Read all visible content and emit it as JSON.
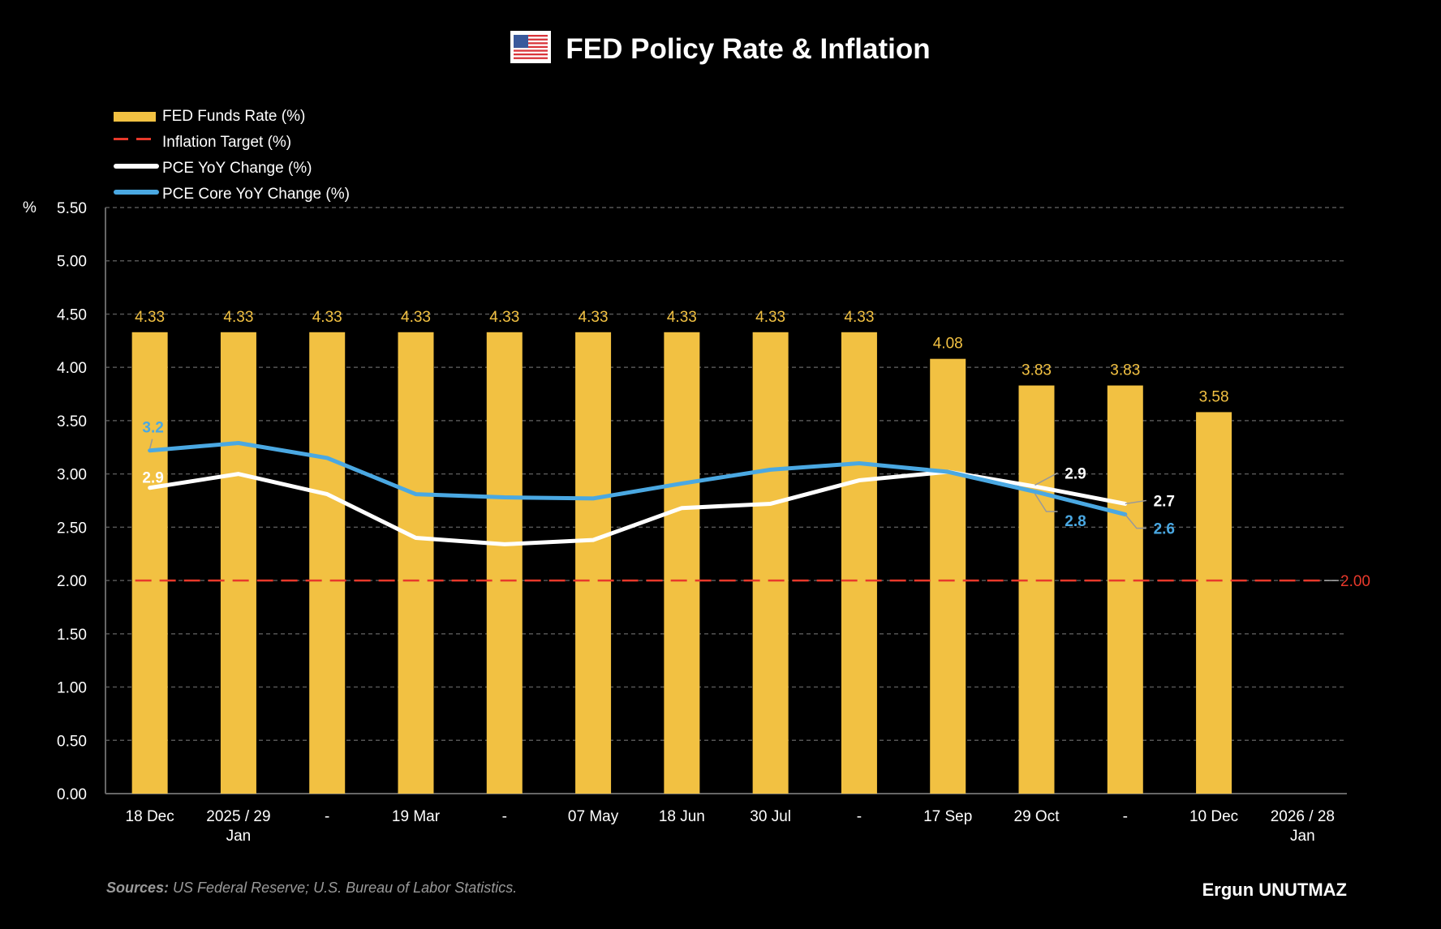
{
  "title": "FED Policy Rate & Inflation",
  "title_icon": "us-flag-icon",
  "y_unit_label": "%",
  "legend": [
    {
      "label": "FED Funds Rate (%)",
      "kind": "bar"
    },
    {
      "label": "Inflation Target (%)",
      "kind": "target"
    },
    {
      "label": "PCE YoY Change (%)",
      "kind": "pce"
    },
    {
      "label": "PCE Core YoY Change (%)",
      "kind": "core"
    }
  ],
  "colors": {
    "bar": "#f2c142",
    "bar_label": "#f2c142",
    "target": "#e8392b",
    "pce": "#ffffff",
    "core": "#4aa8e2",
    "grid": "#555555",
    "axis": "#666666"
  },
  "footer": {
    "sources_label": "Sources:",
    "sources_text": " US Federal Reserve; U.S. Bureau of Labor Statistics.",
    "author": "Ergun UNUTMAZ"
  },
  "chart_data": {
    "type": "bar",
    "title": "FED Policy Rate & Inflation",
    "xlabel": "",
    "ylabel": "%",
    "ylim": [
      0,
      5.5
    ],
    "yticks": [
      "0.00",
      "0.50",
      "1.00",
      "1.50",
      "2.00",
      "2.50",
      "3.00",
      "3.50",
      "4.00",
      "4.50",
      "5.00",
      "5.50"
    ],
    "grid": true,
    "legend_position": "top-left",
    "categories": [
      [
        "18 Dec"
      ],
      [
        "2025 / 29",
        "Jan"
      ],
      [
        "-"
      ],
      [
        "19 Mar"
      ],
      [
        "-"
      ],
      [
        "07 May"
      ],
      [
        "18 Jun"
      ],
      [
        "30 Jul"
      ],
      [
        "-"
      ],
      [
        "17 Sep"
      ],
      [
        "29 Oct"
      ],
      [
        "-"
      ],
      [
        "10 Dec"
      ],
      [
        "2026 / 28",
        "Jan"
      ]
    ],
    "series": [
      {
        "name": "FED Funds Rate (%)",
        "type": "bar",
        "values": [
          4.33,
          4.33,
          4.33,
          4.33,
          4.33,
          4.33,
          4.33,
          4.33,
          4.33,
          4.08,
          3.83,
          3.83,
          3.58,
          null
        ],
        "labels": [
          "4.33",
          "4.33",
          "4.33",
          "4.33",
          "4.33",
          "4.33",
          "4.33",
          "4.33",
          "4.33",
          "4.08",
          "3.83",
          "3.83",
          "3.58",
          ""
        ]
      },
      {
        "name": "Inflation Target (%)",
        "type": "line",
        "style": "dashed",
        "value": 2.0,
        "end_label": "2.00"
      },
      {
        "name": "PCE YoY Change (%)",
        "type": "line",
        "values": [
          2.87,
          3.0,
          2.81,
          2.4,
          2.34,
          2.38,
          2.68,
          2.72,
          2.94,
          3.02,
          2.88,
          2.72
        ],
        "annotations": [
          {
            "index": 0,
            "text": "2.9"
          },
          {
            "index": 10,
            "text": "2.9"
          },
          {
            "index": 11,
            "text": "2.7"
          }
        ]
      },
      {
        "name": "PCE Core YoY Change (%)",
        "type": "line",
        "values": [
          3.22,
          3.29,
          3.15,
          2.81,
          2.78,
          2.77,
          2.91,
          3.04,
          3.1,
          3.02,
          2.83,
          2.62
        ],
        "annotations": [
          {
            "index": 0,
            "text": "3.2"
          },
          {
            "index": 10,
            "text": "2.8"
          },
          {
            "index": 11,
            "text": "2.6"
          }
        ]
      }
    ]
  }
}
